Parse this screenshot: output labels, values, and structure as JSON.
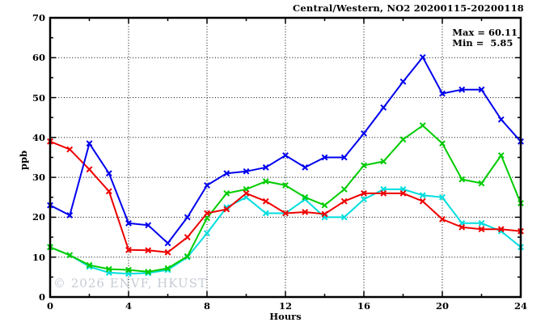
{
  "title": "Central/Western, NO2 20200115-20200118",
  "annotation": {
    "max_label": "Max = 60.11",
    "min_label": "Min =  5.85"
  },
  "watermark": "© 2026 ENVF, HKUST",
  "chart_data": {
    "type": "line",
    "title": "Central/Western, NO2 20200115-20200118",
    "xlabel": "Hours",
    "ylabel": "ppb",
    "xlim": [
      0,
      24
    ],
    "ylim": [
      0,
      70
    ],
    "grid": true,
    "legend": "none",
    "x_major_ticks": [
      0,
      4,
      8,
      12,
      16,
      20,
      24
    ],
    "x_minor_ticks": [
      2,
      6,
      10,
      14,
      18,
      22
    ],
    "y_major_ticks": [
      0,
      10,
      20,
      30,
      40,
      50,
      60,
      70
    ],
    "y_minor_ticks": [
      5,
      15,
      25,
      35,
      45,
      55,
      65
    ],
    "x": [
      0,
      1,
      2,
      3,
      4,
      5,
      6,
      7,
      8,
      9,
      10,
      11,
      12,
      13,
      14,
      15,
      16,
      17,
      18,
      19,
      20,
      21,
      22,
      23,
      24
    ],
    "series": [
      {
        "name": "cyan-line",
        "color": "#00dddd",
        "values": [
          12.5,
          10.5,
          7.6,
          6.1,
          5.85,
          6.0,
          6.8,
          10.0,
          16.0,
          22.5,
          25.0,
          21.0,
          21.0,
          24.5,
          20.0,
          20.0,
          24.5,
          27.0,
          27.0,
          25.5,
          25.0,
          18.5,
          18.5,
          16.5,
          12.5
        ]
      },
      {
        "name": "green-line",
        "color": "#00cc00",
        "values": [
          12.5,
          10.5,
          8.0,
          7.0,
          6.8,
          6.3,
          7.2,
          10.2,
          19.8,
          26.0,
          27.0,
          29.0,
          28.0,
          25.0,
          23.0,
          27.0,
          33.0,
          34.0,
          39.5,
          43.0,
          38.5,
          29.5,
          28.5,
          35.5,
          23.5
        ]
      },
      {
        "name": "red-line",
        "color": "#ee0000",
        "values": [
          39.0,
          37.0,
          32.0,
          26.5,
          11.8,
          11.7,
          11.2,
          15.0,
          21.0,
          22.0,
          26.0,
          24.0,
          21.0,
          21.3,
          20.8,
          24.0,
          26.0,
          26.0,
          26.0,
          24.0,
          19.5,
          17.5,
          17.0,
          17.0,
          16.5
        ]
      },
      {
        "name": "blue-line",
        "color": "#0000ee",
        "values": [
          23.0,
          20.5,
          38.5,
          31.0,
          18.5,
          18.0,
          13.5,
          20.0,
          28.0,
          31.0,
          31.5,
          32.5,
          35.5,
          32.5,
          35.0,
          35.0,
          41.0,
          47.5,
          54.0,
          60.11,
          51.0,
          52.0,
          52.0,
          44.5,
          39.0
        ]
      }
    ],
    "stats": {
      "max": 60.11,
      "min": 5.85
    }
  }
}
